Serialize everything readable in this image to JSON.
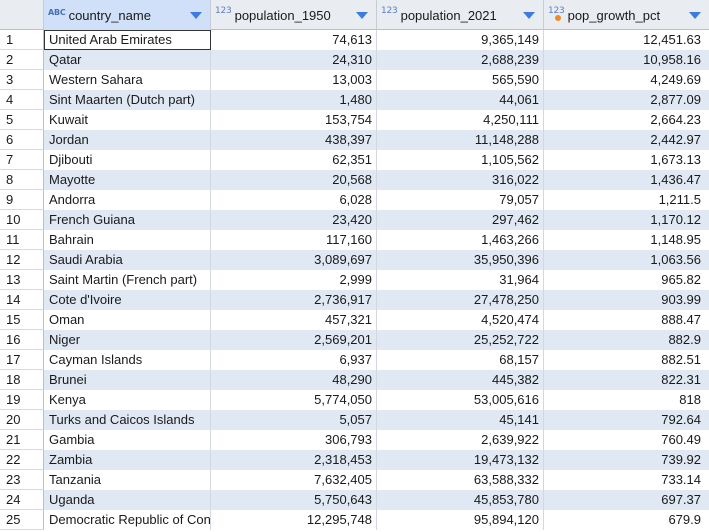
{
  "columns": [
    {
      "type_icon": "ABC",
      "type_name": "text",
      "name": "country_name"
    },
    {
      "type_icon": "123",
      "type_name": "number",
      "name": "population_1950"
    },
    {
      "type_icon": "123",
      "type_name": "number",
      "name": "population_2021"
    },
    {
      "type_icon": "123",
      "type_name": "number-computed",
      "name": "pop_growth_pct"
    }
  ],
  "rows": [
    {
      "n": "1",
      "country": "United Arab Emirates",
      "p1950": "74,613",
      "p2021": "9,365,149",
      "growth": "12,451.63"
    },
    {
      "n": "2",
      "country": "Qatar",
      "p1950": "24,310",
      "p2021": "2,688,239",
      "growth": "10,958.16"
    },
    {
      "n": "3",
      "country": "Western Sahara",
      "p1950": "13,003",
      "p2021": "565,590",
      "growth": "4,249.69"
    },
    {
      "n": "4",
      "country": "Sint Maarten (Dutch part)",
      "p1950": "1,480",
      "p2021": "44,061",
      "growth": "2,877.09"
    },
    {
      "n": "5",
      "country": "Kuwait",
      "p1950": "153,754",
      "p2021": "4,250,111",
      "growth": "2,664.23"
    },
    {
      "n": "6",
      "country": "Jordan",
      "p1950": "438,397",
      "p2021": "11,148,288",
      "growth": "2,442.97"
    },
    {
      "n": "7",
      "country": "Djibouti",
      "p1950": "62,351",
      "p2021": "1,105,562",
      "growth": "1,673.13"
    },
    {
      "n": "8",
      "country": "Mayotte",
      "p1950": "20,568",
      "p2021": "316,022",
      "growth": "1,436.47"
    },
    {
      "n": "9",
      "country": "Andorra",
      "p1950": "6,028",
      "p2021": "79,057",
      "growth": "1,211.5"
    },
    {
      "n": "10",
      "country": "French Guiana",
      "p1950": "23,420",
      "p2021": "297,462",
      "growth": "1,170.12"
    },
    {
      "n": "11",
      "country": "Bahrain",
      "p1950": "117,160",
      "p2021": "1,463,266",
      "growth": "1,148.95"
    },
    {
      "n": "12",
      "country": "Saudi Arabia",
      "p1950": "3,089,697",
      "p2021": "35,950,396",
      "growth": "1,063.56"
    },
    {
      "n": "13",
      "country": "Saint Martin (French part)",
      "p1950": "2,999",
      "p2021": "31,964",
      "growth": "965.82"
    },
    {
      "n": "14",
      "country": "Cote d'Ivoire",
      "p1950": "2,736,917",
      "p2021": "27,478,250",
      "growth": "903.99"
    },
    {
      "n": "15",
      "country": "Oman",
      "p1950": "457,321",
      "p2021": "4,520,474",
      "growth": "888.47"
    },
    {
      "n": "16",
      "country": "Niger",
      "p1950": "2,569,201",
      "p2021": "25,252,722",
      "growth": "882.9"
    },
    {
      "n": "17",
      "country": "Cayman Islands",
      "p1950": "6,937",
      "p2021": "68,157",
      "growth": "882.51"
    },
    {
      "n": "18",
      "country": "Brunei",
      "p1950": "48,290",
      "p2021": "445,382",
      "growth": "822.31"
    },
    {
      "n": "19",
      "country": "Kenya",
      "p1950": "5,774,050",
      "p2021": "53,005,616",
      "growth": "818"
    },
    {
      "n": "20",
      "country": "Turks and Caicos Islands",
      "p1950": "5,057",
      "p2021": "45,141",
      "growth": "792.64"
    },
    {
      "n": "21",
      "country": "Gambia",
      "p1950": "306,793",
      "p2021": "2,639,922",
      "growth": "760.49"
    },
    {
      "n": "22",
      "country": "Zambia",
      "p1950": "2,318,453",
      "p2021": "19,473,132",
      "growth": "739.92"
    },
    {
      "n": "23",
      "country": "Tanzania",
      "p1950": "7,632,405",
      "p2021": "63,588,332",
      "growth": "733.14"
    },
    {
      "n": "24",
      "country": "Uganda",
      "p1950": "5,750,643",
      "p2021": "45,853,780",
      "growth": "697.37"
    },
    {
      "n": "25",
      "country": "Democratic Republic of Congo",
      "p1950": "12,295,748",
      "p2021": "95,894,120",
      "growth": "679.9"
    }
  ],
  "colors": {
    "header_bg": "#e9ecf1",
    "selected_header_bg": "#cfe0f8",
    "stripe": "#dfe8f3",
    "sort_arrow": "#3d7be0",
    "warn_dot": "#f08a24"
  }
}
